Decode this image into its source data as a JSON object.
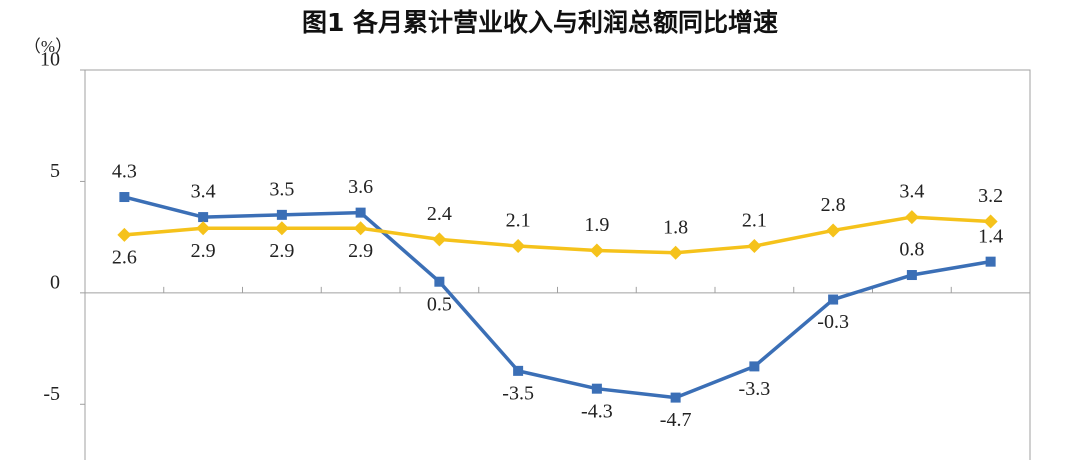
{
  "chart_data": {
    "type": "line",
    "title": "图1  各月累计营业收入与利润总额同比增速",
    "y_label": "（%）",
    "categories": [
      null,
      null,
      null,
      null,
      null,
      null,
      null,
      null,
      null,
      null,
      null,
      null
    ],
    "series": [
      {
        "color": "#3b6fb6",
        "marker": "square",
        "values": [
          4.3,
          3.4,
          3.5,
          3.6,
          0.5,
          -3.5,
          -4.3,
          -4.7,
          -3.3,
          -0.3,
          0.8,
          1.4
        ]
      },
      {
        "color": "#f5c21b",
        "marker": "diamond",
        "values": [
          2.6,
          2.9,
          2.9,
          2.9,
          2.4,
          2.1,
          1.9,
          1.8,
          2.1,
          2.8,
          3.4,
          3.2
        ]
      }
    ],
    "ylim": [
      -7.5,
      10
    ],
    "yticks": [
      10,
      5,
      0,
      -5
    ],
    "grid": false
  }
}
